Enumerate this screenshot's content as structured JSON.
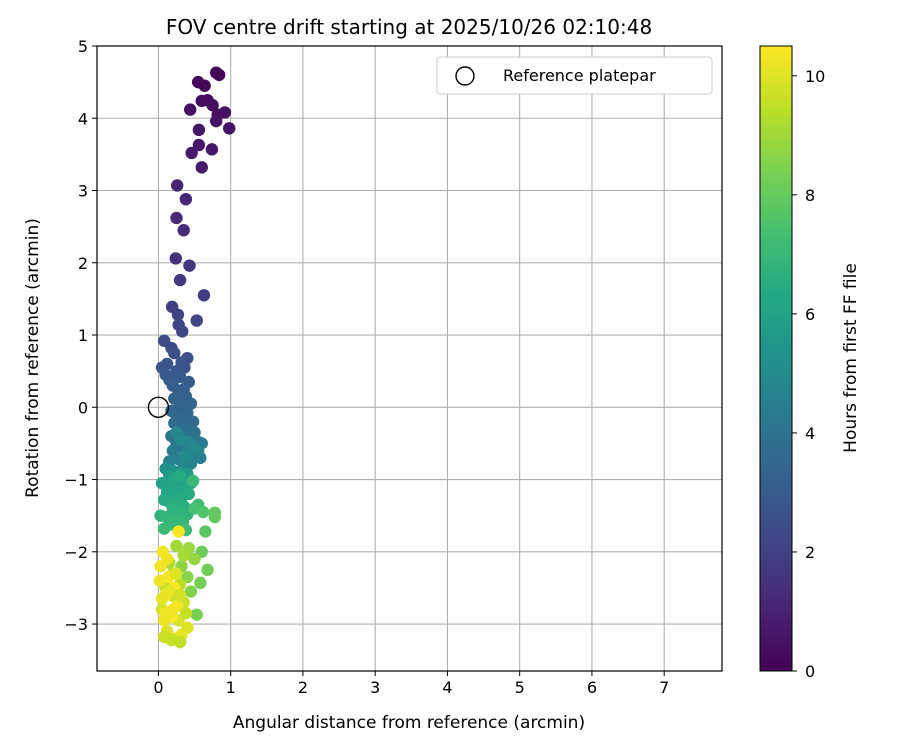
{
  "chart_data": {
    "type": "scatter",
    "title": "FOV centre drift starting at 2025/10/26 02:10:48",
    "xlabel": "Angular distance from reference (arcmin)",
    "ylabel": "Rotation from reference (arcmin)",
    "xlim": [
      -0.85,
      7.8
    ],
    "ylim": [
      -3.65,
      5.0
    ],
    "xticks": [
      "0",
      "1",
      "2",
      "3",
      "4",
      "5",
      "6",
      "7"
    ],
    "yticks": [
      "−3",
      "−2",
      "−1",
      "0",
      "1",
      "2",
      "3",
      "4",
      "5"
    ],
    "grid": true,
    "legend": {
      "position": "top-right",
      "label": "Reference platepar"
    },
    "reference_point": {
      "x": 0,
      "y": 0
    },
    "colorbar": {
      "label": "Hours from first FF file",
      "range": [
        0,
        10.5
      ],
      "ticks": [
        "0",
        "2",
        "4",
        "6",
        "8",
        "10"
      ],
      "colormap": "viridis"
    },
    "points": [
      [
        0.8,
        4.63,
        0.05
      ],
      [
        0.84,
        4.6,
        0.12
      ],
      [
        0.55,
        4.5,
        0.18
      ],
      [
        0.64,
        4.45,
        0.22
      ],
      [
        0.68,
        4.25,
        0.28
      ],
      [
        0.6,
        4.24,
        0.32
      ],
      [
        0.75,
        4.18,
        0.36
      ],
      [
        0.82,
        4.05,
        0.4
      ],
      [
        0.92,
        4.08,
        0.44
      ],
      [
        0.44,
        4.12,
        0.48
      ],
      [
        0.8,
        3.96,
        0.52
      ],
      [
        0.98,
        3.86,
        0.56
      ],
      [
        0.56,
        3.84,
        0.6
      ],
      [
        0.56,
        3.63,
        0.64
      ],
      [
        0.74,
        3.57,
        0.68
      ],
      [
        0.46,
        3.52,
        0.72
      ],
      [
        0.6,
        3.32,
        0.76
      ],
      [
        0.26,
        3.07,
        1.05
      ],
      [
        0.38,
        2.88,
        1.15
      ],
      [
        0.25,
        2.62,
        1.25
      ],
      [
        0.35,
        2.45,
        1.35
      ],
      [
        0.24,
        2.06,
        1.5
      ],
      [
        0.43,
        1.96,
        1.62
      ],
      [
        0.3,
        1.76,
        1.75
      ],
      [
        0.63,
        1.55,
        1.85
      ],
      [
        0.19,
        1.39,
        1.95
      ],
      [
        0.27,
        1.28,
        2.05
      ],
      [
        0.53,
        1.2,
        2.1
      ],
      [
        0.28,
        1.14,
        2.15
      ],
      [
        0.33,
        1.05,
        2.2
      ],
      [
        0.08,
        0.92,
        2.4
      ],
      [
        0.18,
        0.82,
        2.5
      ],
      [
        0.22,
        0.75,
        2.55
      ],
      [
        0.4,
        0.68,
        2.6
      ],
      [
        0.32,
        0.62,
        2.65
      ],
      [
        0.36,
        0.55,
        2.7
      ],
      [
        0.05,
        0.55,
        2.75
      ],
      [
        0.12,
        0.6,
        2.8
      ],
      [
        0.25,
        0.5,
        2.85
      ],
      [
        0.1,
        0.45,
        2.9
      ],
      [
        0.15,
        0.38,
        2.95
      ],
      [
        0.3,
        0.42,
        3.0
      ],
      [
        0.42,
        0.35,
        3.05
      ],
      [
        0.2,
        0.3,
        3.1
      ],
      [
        0.35,
        0.25,
        3.15
      ],
      [
        0.28,
        0.2,
        3.2
      ],
      [
        0.38,
        0.15,
        3.25
      ],
      [
        0.22,
        0.12,
        3.3
      ],
      [
        0.45,
        0.05,
        3.35
      ],
      [
        0.3,
        0.02,
        3.4
      ],
      [
        0.18,
        -0.05,
        3.45
      ],
      [
        0.4,
        -0.08,
        3.5
      ],
      [
        0.25,
        -0.12,
        3.55
      ],
      [
        0.35,
        -0.18,
        3.6
      ],
      [
        0.48,
        -0.2,
        3.65
      ],
      [
        0.22,
        -0.22,
        3.7
      ],
      [
        0.3,
        -0.28,
        3.75
      ],
      [
        0.4,
        -0.3,
        3.8
      ],
      [
        0.5,
        -0.35,
        3.85
      ],
      [
        0.28,
        -0.38,
        3.9
      ],
      [
        0.18,
        -0.4,
        3.95
      ],
      [
        0.36,
        -0.42,
        4.0
      ],
      [
        0.45,
        -0.45,
        4.05
      ],
      [
        0.55,
        -0.48,
        4.1
      ],
      [
        0.25,
        -0.5,
        4.15
      ],
      [
        0.32,
        -0.55,
        4.2
      ],
      [
        0.42,
        -0.58,
        4.25
      ],
      [
        0.6,
        -0.5,
        4.3
      ],
      [
        0.2,
        -0.6,
        4.35
      ],
      [
        0.38,
        -0.62,
        4.4
      ],
      [
        0.5,
        -0.65,
        4.45
      ],
      [
        0.58,
        -0.7,
        4.5
      ],
      [
        0.28,
        -0.72,
        4.55
      ],
      [
        0.15,
        -0.75,
        4.6
      ],
      [
        0.45,
        -0.78,
        4.65
      ],
      [
        0.35,
        -0.8,
        4.7
      ],
      [
        0.55,
        -0.6,
        4.75
      ],
      [
        0.42,
        -0.48,
        4.8
      ],
      [
        0.25,
        -0.35,
        4.85
      ],
      [
        0.32,
        -0.45,
        4.9
      ],
      [
        0.48,
        -0.55,
        4.95
      ],
      [
        0.38,
        -0.68,
        5.0
      ],
      [
        0.1,
        -0.85,
        5.3
      ],
      [
        0.2,
        -0.88,
        5.4
      ],
      [
        0.3,
        -0.9,
        5.5
      ],
      [
        0.4,
        -0.92,
        5.6
      ],
      [
        0.15,
        -0.95,
        5.7
      ],
      [
        0.25,
        -1.0,
        5.8
      ],
      [
        0.35,
        -1.02,
        5.9
      ],
      [
        0.05,
        -1.05,
        6.0
      ],
      [
        0.45,
        -1.05,
        6.05
      ],
      [
        0.18,
        -1.1,
        6.1
      ],
      [
        0.28,
        -1.12,
        6.15
      ],
      [
        0.38,
        -1.15,
        6.2
      ],
      [
        0.12,
        -1.18,
        6.25
      ],
      [
        0.22,
        -1.22,
        6.3
      ],
      [
        0.32,
        -1.25,
        6.35
      ],
      [
        0.08,
        -1.28,
        6.4
      ],
      [
        0.42,
        -1.2,
        6.45
      ],
      [
        0.16,
        -1.32,
        6.5
      ],
      [
        0.26,
        -1.35,
        6.55
      ],
      [
        0.36,
        -1.38,
        6.6
      ],
      [
        0.2,
        -1.42,
        6.65
      ],
      [
        0.3,
        -1.45,
        6.7
      ],
      [
        0.4,
        -1.48,
        6.75
      ],
      [
        0.03,
        -1.5,
        6.8
      ],
      [
        0.12,
        -1.52,
        6.85
      ],
      [
        0.24,
        -1.55,
        6.9
      ],
      [
        0.34,
        -1.58,
        6.95
      ],
      [
        0.18,
        -1.62,
        7.0
      ],
      [
        0.28,
        -1.65,
        7.05
      ],
      [
        0.08,
        -1.68,
        7.1
      ],
      [
        0.38,
        -1.7,
        7.15
      ],
      [
        0.48,
        -1.02,
        7.0
      ],
      [
        0.55,
        -1.35,
        7.2
      ],
      [
        0.22,
        -0.98,
        6.2
      ],
      [
        0.3,
        -0.95,
        6.4
      ],
      [
        0.5,
        -1.4,
        7.4
      ],
      [
        0.62,
        -1.45,
        7.6
      ],
      [
        0.65,
        -1.72,
        7.8
      ],
      [
        0.78,
        -1.46,
        7.9
      ],
      [
        0.78,
        -1.52,
        8.0
      ],
      [
        0.6,
        -2.0,
        8.1
      ],
      [
        0.68,
        -2.25,
        8.2
      ],
      [
        0.58,
        -2.43,
        8.3
      ],
      [
        0.53,
        -2.87,
        8.4
      ],
      [
        0.45,
        -2.55,
        8.5
      ],
      [
        0.4,
        -2.35,
        8.6
      ],
      [
        0.32,
        -2.2,
        8.7
      ],
      [
        0.5,
        -2.1,
        8.8
      ],
      [
        0.42,
        -1.95,
        8.9
      ],
      [
        0.25,
        -1.92,
        9.0
      ],
      [
        0.35,
        -2.05,
        9.1
      ],
      [
        0.15,
        -2.15,
        9.2
      ],
      [
        0.2,
        -2.3,
        9.3
      ],
      [
        0.3,
        -2.45,
        9.4
      ],
      [
        0.1,
        -2.5,
        9.5
      ],
      [
        0.22,
        -2.62,
        9.6
      ],
      [
        0.35,
        -2.7,
        9.7
      ],
      [
        0.05,
        -2.8,
        9.8
      ],
      [
        0.15,
        -2.88,
        9.85
      ],
      [
        0.28,
        -2.95,
        9.9
      ],
      [
        0.4,
        -3.05,
        9.95
      ],
      [
        0.12,
        -3.1,
        10.0
      ],
      [
        0.25,
        -3.2,
        10.05
      ],
      [
        0.32,
        -3.15,
        10.1
      ],
      [
        0.08,
        -3.18,
        9.7
      ],
      [
        0.18,
        -3.22,
        9.6
      ],
      [
        0.3,
        -3.25,
        9.5
      ],
      [
        0.02,
        -2.4,
        10.2
      ],
      [
        0.06,
        -2.0,
        10.3
      ],
      [
        0.1,
        -2.6,
        10.35
      ],
      [
        0.14,
        -2.35,
        10.4
      ],
      [
        0.18,
        -2.9,
        10.45
      ],
      [
        0.22,
        -2.5,
        10.4
      ],
      [
        0.26,
        -2.75,
        10.35
      ],
      [
        0.03,
        -2.2,
        10.3
      ],
      [
        0.12,
        -2.1,
        10.25
      ],
      [
        0.2,
        -2.8,
        10.3
      ],
      [
        0.08,
        -2.95,
        10.2
      ],
      [
        0.28,
        -1.72,
        10.4
      ],
      [
        0.15,
        -2.55,
        10.1
      ],
      [
        0.05,
        -2.65,
        10.15
      ],
      [
        0.24,
        -2.3,
        10.0
      ],
      [
        0.1,
        -2.85,
        10.25
      ],
      [
        0.3,
        -2.6,
        9.8
      ],
      [
        0.38,
        -2.85,
        9.6
      ]
    ]
  }
}
